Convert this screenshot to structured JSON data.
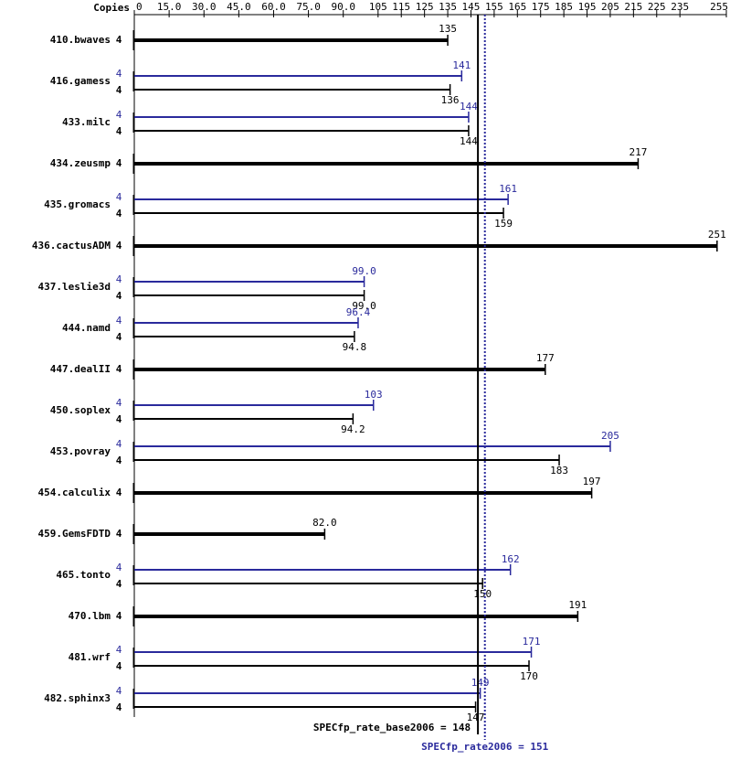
{
  "chart_data": {
    "type": "bar",
    "orientation": "horizontal",
    "copies_label": "Copies",
    "categories": [
      "410.bwaves",
      "416.gamess",
      "433.milc",
      "434.zeusmp",
      "435.gromacs",
      "436.cactusADM",
      "437.leslie3d",
      "444.namd",
      "447.dealII",
      "450.soplex",
      "453.povray",
      "454.calculix",
      "459.GemsFDTD",
      "465.tonto",
      "470.lbm",
      "481.wrf",
      "482.sphinx3"
    ],
    "series": [
      {
        "color": "#2a2a9c",
        "values": [
          null,
          141,
          144,
          null,
          161,
          null,
          99,
          96.4,
          null,
          103,
          205,
          null,
          null,
          162,
          null,
          171,
          149
        ],
        "value_labels": [
          null,
          "141",
          "144",
          null,
          "161",
          null,
          "99.0",
          "96.4",
          null,
          "103",
          "205",
          null,
          null,
          "162",
          null,
          "171",
          "149"
        ],
        "copies": [
          null,
          4,
          4,
          null,
          4,
          null,
          4,
          4,
          null,
          4,
          4,
          null,
          null,
          4,
          null,
          4,
          4
        ]
      },
      {
        "color": "#000000",
        "values": [
          135,
          136,
          144,
          217,
          159,
          251,
          99,
          94.8,
          177,
          94.2,
          183,
          197,
          82,
          150,
          191,
          170,
          147
        ],
        "value_labels": [
          "135",
          "136",
          "144",
          "217",
          "159",
          "251",
          "99.0",
          "94.8",
          "177",
          "94.2",
          "183",
          "197",
          "82.0",
          "150",
          "191",
          "170",
          "147"
        ],
        "copies": [
          4,
          4,
          4,
          4,
          4,
          4,
          4,
          4,
          4,
          4,
          4,
          4,
          4,
          4,
          4,
          4,
          4
        ]
      }
    ],
    "xlim": [
      0,
      255
    ],
    "xticks": [
      0,
      {
        "value": 15,
        "label": "15.0"
      },
      {
        "value": 30,
        "label": "30.0"
      },
      {
        "value": 45,
        "label": "45.0"
      },
      {
        "value": 60,
        "label": "60.0"
      },
      {
        "value": 75,
        "label": "75.0"
      },
      {
        "value": 90,
        "label": "90.0"
      },
      105,
      115,
      125,
      135,
      145,
      155,
      165,
      175,
      185,
      195,
      205,
      215,
      225,
      235,
      255
    ],
    "reference_lines": [
      {
        "label": "SPECfp_rate_base2006 = 148",
        "value": 148,
        "color": "#000000",
        "style": "solid"
      },
      {
        "label": "SPECfp_rate2006 = 151",
        "value": 151,
        "color": "#2a2a9c",
        "style": "dotted"
      }
    ]
  }
}
